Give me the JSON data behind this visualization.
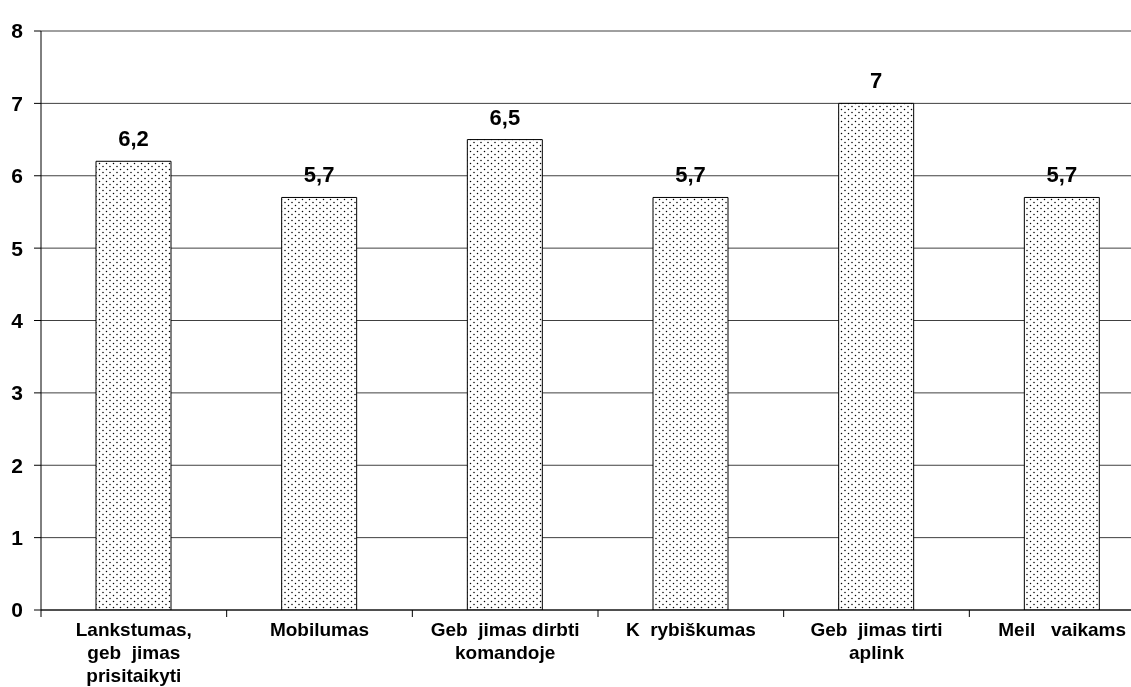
{
  "chart_data": {
    "type": "bar",
    "categories": [
      "Lankstumas, geb  jimas prisitaikyti",
      "Mobilumas",
      "Geb  jimas dirbti komandoje",
      "K  rybiškumas",
      "Geb  jimas tirti aplink",
      "Meil   vaikams"
    ],
    "values": [
      6.2,
      5.7,
      6.5,
      5.7,
      7,
      5.7
    ],
    "value_labels": [
      "6,2",
      "5,7",
      "6,5",
      "5,7",
      "7",
      "5,7"
    ],
    "color": "#000000",
    "ylim": [
      0,
      8
    ],
    "yticks": [
      0,
      1,
      2,
      3,
      4,
      5,
      6,
      7,
      8
    ],
    "grid": "y"
  }
}
